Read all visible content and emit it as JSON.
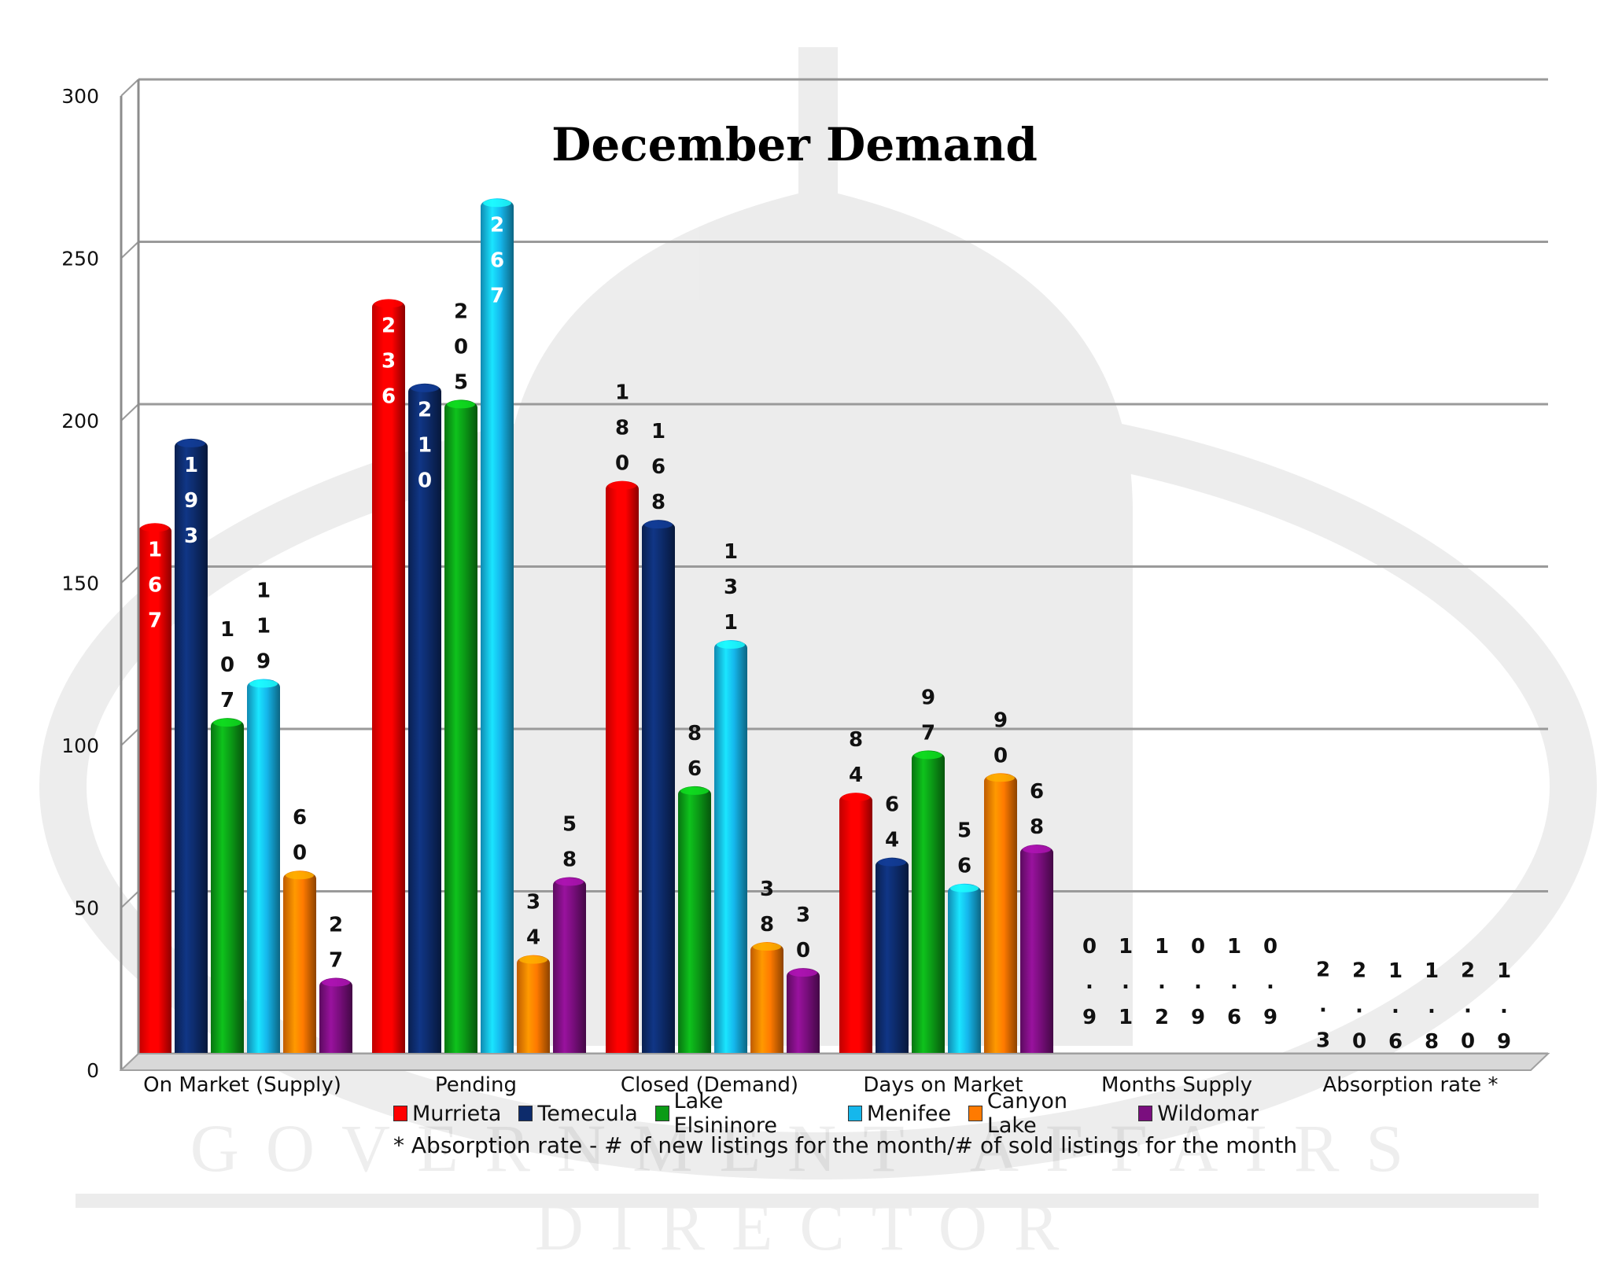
{
  "chart_data": {
    "type": "bar",
    "title": "December Demand",
    "categories": [
      "On Market (Supply)",
      "Pending",
      "Closed (Demand)",
      "Days on Market",
      "Months Supply",
      "Absorption rate *"
    ],
    "ylim": [
      0,
      300
    ],
    "yticks": [
      0,
      50,
      100,
      150,
      200,
      250,
      300
    ],
    "grid": true,
    "legend_position": "bottom",
    "series": [
      {
        "name": "Murrieta",
        "color": "#ff0000",
        "values": [
          167,
          236,
          180,
          84,
          0.9,
          2.3
        ],
        "labels": [
          "167",
          "236",
          "180",
          "84",
          "0.9",
          "2.3"
        ]
      },
      {
        "name": "Temecula",
        "color": "#0d2b6b",
        "values": [
          193,
          210,
          168,
          64,
          1.1,
          2.0
        ],
        "labels": [
          "193",
          "210",
          "168",
          "64",
          "1.1",
          "2.0"
        ]
      },
      {
        "name": "Lake Elsininore",
        "color": "#0b9b16",
        "values": [
          107,
          205,
          86,
          97,
          1.2,
          1.6
        ],
        "labels": [
          "107",
          "205",
          "86",
          "97",
          "1.2",
          "1.6"
        ]
      },
      {
        "name": "Menifee",
        "color": "#15b7ec",
        "values": [
          119,
          267,
          131,
          56,
          0.9,
          1.8
        ],
        "labels": [
          "119",
          "267",
          "131",
          "56",
          "0.9",
          "1.8"
        ]
      },
      {
        "name": "Canyon Lake",
        "color": "#ff7a00",
        "values": [
          60,
          34,
          38,
          90,
          1.6,
          2.0
        ],
        "labels": [
          "60",
          "34",
          "38",
          "90",
          "1.6",
          "2.0"
        ]
      },
      {
        "name": "Wildomar",
        "color": "#7a0e7e",
        "values": [
          27,
          58,
          30,
          68,
          0.9,
          1.9
        ],
        "labels": [
          "27",
          "58",
          "30",
          "68",
          "0.9",
          "1.9"
        ]
      }
    ],
    "footnote": "* Absorption rate - # of new listings for the month/# of sold listings  for the month"
  },
  "watermark": "GOVERNMENT AFFAIRS DIRECTOR"
}
